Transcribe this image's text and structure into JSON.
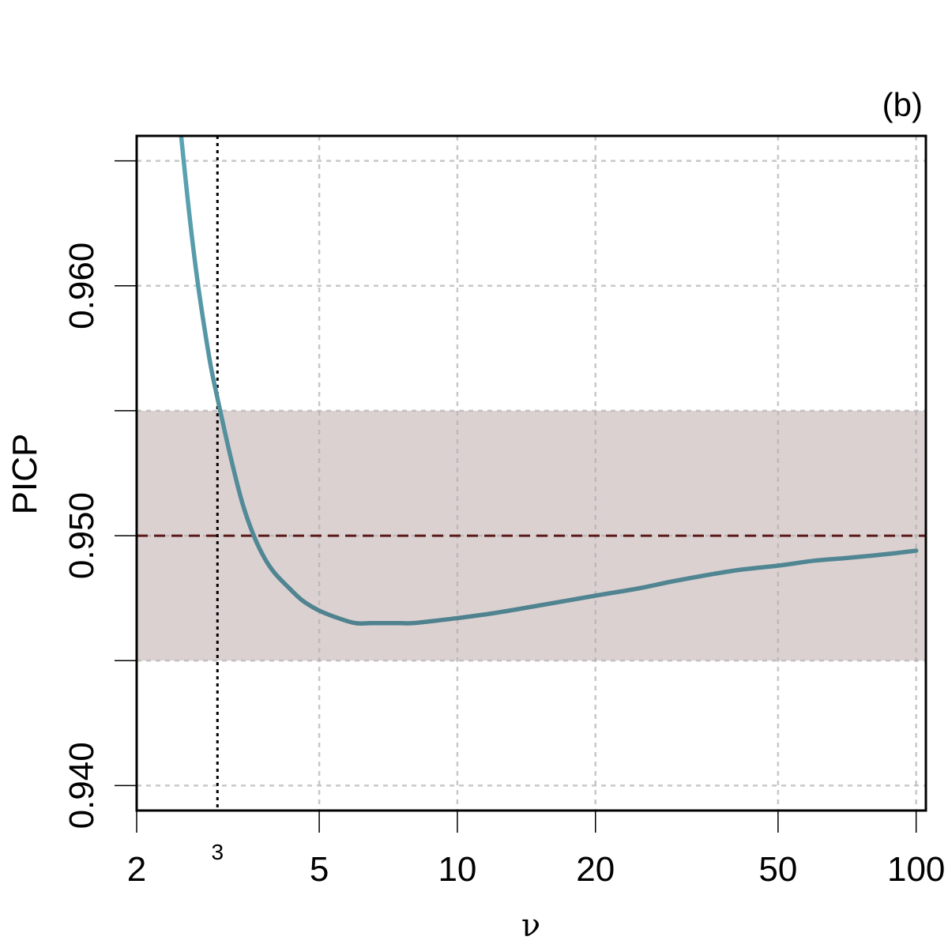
{
  "chart_data": {
    "type": "line",
    "panel_label": "(b)",
    "xlabel": "ν",
    "ylabel": "PICP",
    "x_scale": "log",
    "xlim": [
      2,
      105
    ],
    "ylim": [
      0.939,
      0.966
    ],
    "x_ticks": [
      2,
      5,
      10,
      20,
      50,
      100
    ],
    "x_tick_labels": [
      "2",
      "5",
      "10",
      "20",
      "50",
      "100"
    ],
    "x_extra_tick": {
      "value": 3,
      "label": "3"
    },
    "y_ticks": [
      0.94,
      0.945,
      0.95,
      0.955,
      0.96,
      0.965
    ],
    "y_tick_labels": [
      "0.940",
      "",
      "0.950",
      "",
      "0.960",
      ""
    ],
    "grid": true,
    "band": {
      "ymin": 0.945,
      "ymax": 0.955,
      "color": "#dcd1d1"
    },
    "reference_line": {
      "y": 0.95,
      "color": "#5a1a1a",
      "style": "dashed"
    },
    "vertical_line": {
      "x": 3,
      "color": "#000000",
      "style": "dotted"
    },
    "series": [
      {
        "color": "#5a96a4",
        "x": [
          2.5,
          2.6,
          2.7,
          2.8,
          2.9,
          3.0,
          3.2,
          3.4,
          3.6,
          3.8,
          4.0,
          4.3,
          4.6,
          5.0,
          5.5,
          6.0,
          6.5,
          7.0,
          7.5,
          8.0,
          9.0,
          10.0,
          12.0,
          15.0,
          20.0,
          25.0,
          30.0,
          40.0,
          50.0,
          60.0,
          70.0,
          80.0,
          90.0,
          100.0
        ],
        "y": [
          0.966,
          0.963,
          0.9605,
          0.9585,
          0.9568,
          0.9555,
          0.9532,
          0.9513,
          0.95,
          0.9491,
          0.9485,
          0.9479,
          0.9474,
          0.947,
          0.9467,
          0.9465,
          0.9465,
          0.9465,
          0.9465,
          0.9465,
          0.9466,
          0.9467,
          0.9469,
          0.9472,
          0.9476,
          0.9479,
          0.9482,
          0.9486,
          0.9488,
          0.949,
          0.9491,
          0.9492,
          0.9493,
          0.9494
        ]
      }
    ]
  }
}
